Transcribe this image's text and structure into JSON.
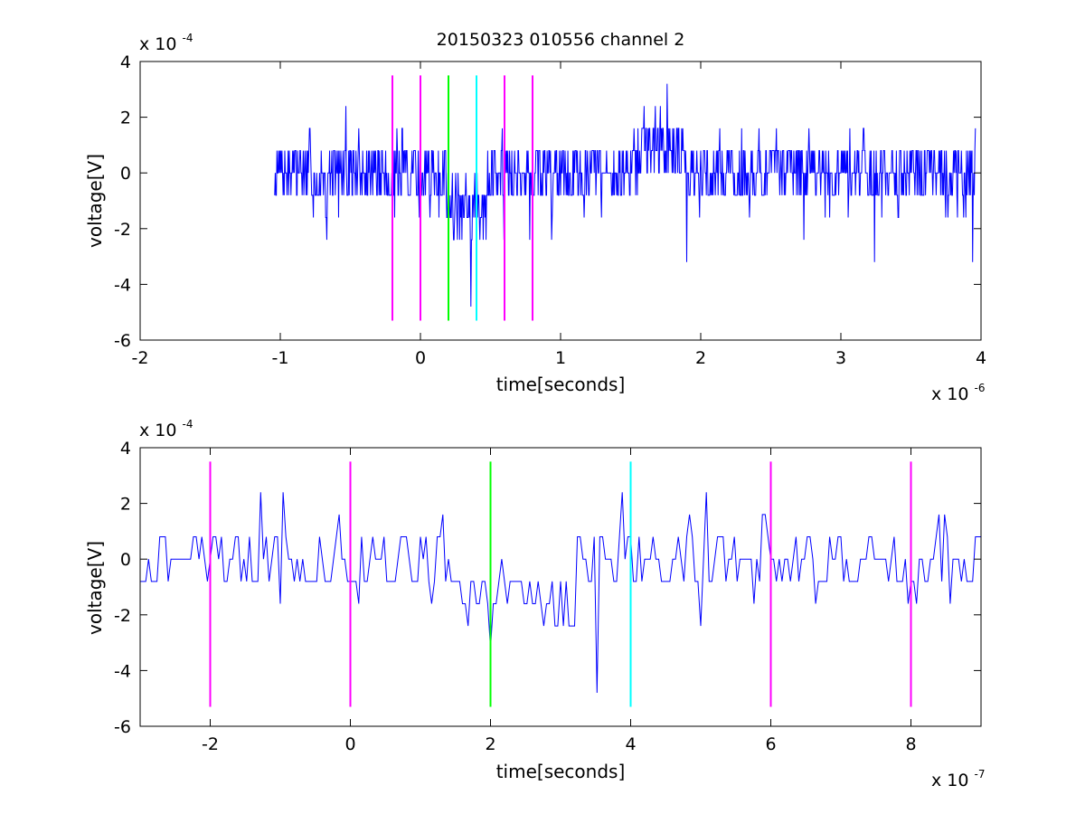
{
  "title": "20150323 010556 channel 2",
  "colors": {
    "signal": "#0000ff",
    "marker_pre": "#ff00ff",
    "marker_start": "#00ff00",
    "marker_end": "#00ffff",
    "axes": "#000000",
    "background": "#ffffff"
  },
  "chart_data": [
    {
      "type": "line",
      "xlabel": "time[seconds]",
      "ylabel": "voltage[V]",
      "x_exponent_base": "x 10",
      "x_exponent_power": "-6",
      "y_exponent_base": "x 10",
      "y_exponent_power": "-4",
      "xlim": [
        -2,
        4
      ],
      "ylim": [
        -6,
        4
      ],
      "x_ticks": [
        -2,
        -1,
        0,
        1,
        2,
        3,
        4
      ],
      "x_tick_labels": [
        "-2",
        "-1",
        "0",
        "1",
        "2",
        "3",
        "4"
      ],
      "y_ticks": [
        -6,
        -4,
        -2,
        0,
        2,
        4
      ],
      "y_tick_labels": [
        "-6",
        "-4",
        "-2",
        "0",
        "2",
        "4"
      ],
      "grid": false,
      "series": [
        {
          "x_range": [
            -1.04,
            3.96
          ],
          "step": 0.004,
          "quant_levels": [
            -4.8,
            -4.0,
            -3.2,
            -2.4,
            -1.6,
            -0.8,
            0,
            0.8,
            1.6,
            2.4,
            3.2
          ],
          "noise_amplitude": 1.0,
          "seed": 7,
          "dip_window": [
            0.2,
            0.5
          ],
          "dip_depth": -0.9,
          "rise_window": [
            1.55,
            1.9
          ],
          "rise_height": 0.7,
          "spikes": [
            {
              "x": 0.36,
              "y": -4.8
            },
            {
              "x": 1.76,
              "y": 3.2
            },
            {
              "x": 1.9,
              "y": -3.2
            },
            {
              "x": 3.94,
              "y": -3.2
            },
            {
              "x": -0.53,
              "y": 2.4
            },
            {
              "x": 3.24,
              "y": -3.2
            }
          ]
        }
      ],
      "markers": [
        {
          "x": -0.2,
          "color_key": "marker_pre",
          "ymin": -5.3,
          "ymax": 3.5
        },
        {
          "x": 0.0,
          "color_key": "marker_pre",
          "ymin": -5.3,
          "ymax": 3.5
        },
        {
          "x": 0.2,
          "color_key": "marker_start",
          "ymin": -5.3,
          "ymax": 3.5
        },
        {
          "x": 0.4,
          "color_key": "marker_end",
          "ymin": -5.3,
          "ymax": 3.5
        },
        {
          "x": 0.6,
          "color_key": "marker_pre",
          "ymin": -5.3,
          "ymax": 3.5
        },
        {
          "x": 0.8,
          "color_key": "marker_pre",
          "ymin": -5.3,
          "ymax": 3.5
        }
      ]
    },
    {
      "type": "line",
      "xlabel": "time[seconds]",
      "ylabel": "voltage[V]",
      "x_exponent_base": "x 10",
      "x_exponent_power": "-7",
      "y_exponent_base": "x 10",
      "y_exponent_power": "-4",
      "xlim": [
        -3,
        9
      ],
      "ylim": [
        -6,
        4
      ],
      "x_ticks": [
        -2,
        0,
        2,
        4,
        6,
        8
      ],
      "x_tick_labels": [
        "-2",
        "0",
        "2",
        "4",
        "6",
        "8"
      ],
      "y_ticks": [
        -6,
        -4,
        -2,
        0,
        2,
        4
      ],
      "y_tick_labels": [
        "-6",
        "-4",
        "-2",
        "0",
        "2",
        "4"
      ],
      "grid": false,
      "series": [
        {
          "x_range": [
            -3,
            9
          ],
          "step": 0.04,
          "quant_levels": [
            -4.8,
            -4.0,
            -3.2,
            -2.4,
            -1.6,
            -0.8,
            0,
            0.8,
            1.6,
            2.4
          ],
          "noise_amplitude": 1.0,
          "seed": 21,
          "dip_window": [
            1.6,
            3.2
          ],
          "dip_depth": -1.0,
          "rise_window": [
            0,
            0
          ],
          "rise_height": 0,
          "spikes": [
            {
              "x": -1.28,
              "y": 2.4
            },
            {
              "x": -0.96,
              "y": 2.4
            },
            {
              "x": 3.52,
              "y": -4.8
            },
            {
              "x": 5.08,
              "y": 2.4
            },
            {
              "x": 2.0,
              "y": -3.2
            },
            {
              "x": 7.96,
              "y": -1.6
            }
          ]
        }
      ],
      "markers": [
        {
          "x": -2,
          "color_key": "marker_pre",
          "ymin": -5.3,
          "ymax": 3.5
        },
        {
          "x": 0,
          "color_key": "marker_pre",
          "ymin": -5.3,
          "ymax": 3.5
        },
        {
          "x": 2,
          "color_key": "marker_start",
          "ymin": -5.3,
          "ymax": 3.5
        },
        {
          "x": 4,
          "color_key": "marker_end",
          "ymin": -5.3,
          "ymax": 3.5
        },
        {
          "x": 6,
          "color_key": "marker_pre",
          "ymin": -5.3,
          "ymax": 3.5
        },
        {
          "x": 8,
          "color_key": "marker_pre",
          "ymin": -5.3,
          "ymax": 3.5
        }
      ]
    }
  ]
}
